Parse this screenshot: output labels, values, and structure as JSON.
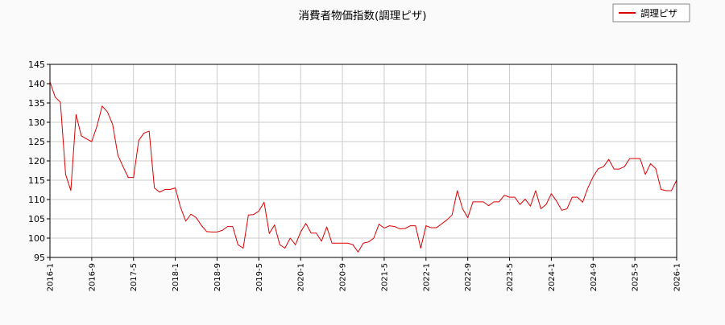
{
  "chart_data": {
    "type": "line",
    "title": "消費者物価指数(調理ピザ)",
    "legend": {
      "position": "top-right",
      "entries": [
        "調理ピザ"
      ]
    },
    "xlabel": "",
    "ylabel": "",
    "grid": true,
    "ylim": [
      95,
      145
    ],
    "yticks": [
      95,
      100,
      105,
      110,
      115,
      120,
      125,
      130,
      135,
      140,
      145
    ],
    "xlim": [
      "2016-1",
      "2026-1"
    ],
    "xticks": [
      "2016-1",
      "2016-9",
      "2017-5",
      "2018-1",
      "2018-9",
      "2019-5",
      "2020-1",
      "2020-9",
      "2021-5",
      "2022-1",
      "2022-9",
      "2023-5",
      "2024-1",
      "2024-9",
      "2025-5",
      "2026-1"
    ],
    "colors": {
      "series": "#dd0000",
      "grid": "#cccccc",
      "background": "#fafafa",
      "plot": "#ffffff"
    },
    "series": [
      {
        "name": "調理ピザ",
        "x": [
          "2016-1",
          "2016-2",
          "2016-3",
          "2016-4",
          "2016-5",
          "2016-6",
          "2016-7",
          "2016-8",
          "2016-9",
          "2016-10",
          "2016-11",
          "2016-12",
          "2017-1",
          "2017-2",
          "2017-3",
          "2017-4",
          "2017-5",
          "2017-6",
          "2017-7",
          "2017-8",
          "2017-9",
          "2017-10",
          "2017-11",
          "2017-12",
          "2018-1",
          "2018-2",
          "2018-3",
          "2018-4",
          "2018-5",
          "2018-6",
          "2018-7",
          "2018-8",
          "2018-9",
          "2018-10",
          "2018-11",
          "2018-12",
          "2019-1",
          "2019-2",
          "2019-3",
          "2019-4",
          "2019-5",
          "2019-6",
          "2019-7",
          "2019-8",
          "2019-9",
          "2019-10",
          "2019-11",
          "2019-12",
          "2020-1",
          "2020-2",
          "2020-3",
          "2020-4",
          "2020-5",
          "2020-6",
          "2020-7",
          "2020-8",
          "2020-9",
          "2020-10",
          "2020-11",
          "2020-12",
          "2021-1",
          "2021-2",
          "2021-3",
          "2021-4",
          "2021-5",
          "2021-6",
          "2021-7",
          "2021-8",
          "2021-9",
          "2021-10",
          "2021-11",
          "2021-12",
          "2022-1",
          "2022-2",
          "2022-3",
          "2022-4",
          "2022-5",
          "2022-6",
          "2022-7",
          "2022-8",
          "2022-9",
          "2022-10",
          "2022-11",
          "2022-12",
          "2023-1",
          "2023-2",
          "2023-3",
          "2023-4",
          "2023-5",
          "2023-6",
          "2023-7",
          "2023-8",
          "2023-9",
          "2023-10",
          "2023-11",
          "2023-12",
          "2024-1",
          "2024-2",
          "2024-3",
          "2024-4",
          "2024-5",
          "2024-6",
          "2024-7",
          "2024-8",
          "2024-9",
          "2024-10",
          "2024-11",
          "2024-12",
          "2025-1",
          "2025-2",
          "2025-3",
          "2025-4",
          "2025-5",
          "2025-6",
          "2025-7",
          "2025-8",
          "2025-9",
          "2025-10",
          "2025-11",
          "2025-12",
          "2026-1"
        ],
        "values": [
          140.5,
          136.5,
          135.2,
          116.5,
          112.3,
          132.0,
          126.5,
          125.7,
          125.0,
          129.0,
          134.2,
          132.7,
          129.5,
          121.5,
          118.5,
          115.7,
          115.7,
          125.3,
          127.2,
          127.7,
          113.0,
          111.9,
          112.6,
          112.6,
          113.0,
          108.0,
          104.4,
          106.2,
          105.3,
          103.3,
          101.7,
          101.6,
          101.6,
          102.0,
          103.0,
          103.0,
          98.3,
          97.4,
          106.0,
          106.1,
          107.0,
          109.3,
          101.2,
          103.4,
          98.3,
          97.4,
          100.0,
          98.3,
          101.6,
          103.8,
          101.3,
          101.3,
          99.2,
          102.9,
          98.7,
          98.7,
          98.7,
          98.7,
          98.3,
          96.4,
          98.7,
          99.0,
          100.0,
          103.6,
          102.6,
          103.2,
          103.0,
          102.4,
          102.5,
          103.2,
          103.2,
          97.4,
          103.2,
          102.7,
          102.7,
          103.7,
          104.7,
          106.0,
          112.3,
          107.6,
          105.3,
          109.4,
          109.4,
          109.4,
          108.4,
          109.4,
          109.4,
          111.1,
          110.6,
          110.6,
          108.7,
          110.1,
          108.3,
          112.3,
          107.6,
          108.7,
          111.5,
          109.6,
          107.2,
          107.6,
          110.6,
          110.6,
          109.3,
          113.0,
          115.9,
          118.0,
          118.5,
          120.4,
          117.9,
          117.9,
          118.5,
          120.6,
          120.6,
          120.6,
          116.5,
          119.3,
          118.0,
          112.6,
          112.3,
          112.3,
          115.0
        ]
      }
    ]
  }
}
